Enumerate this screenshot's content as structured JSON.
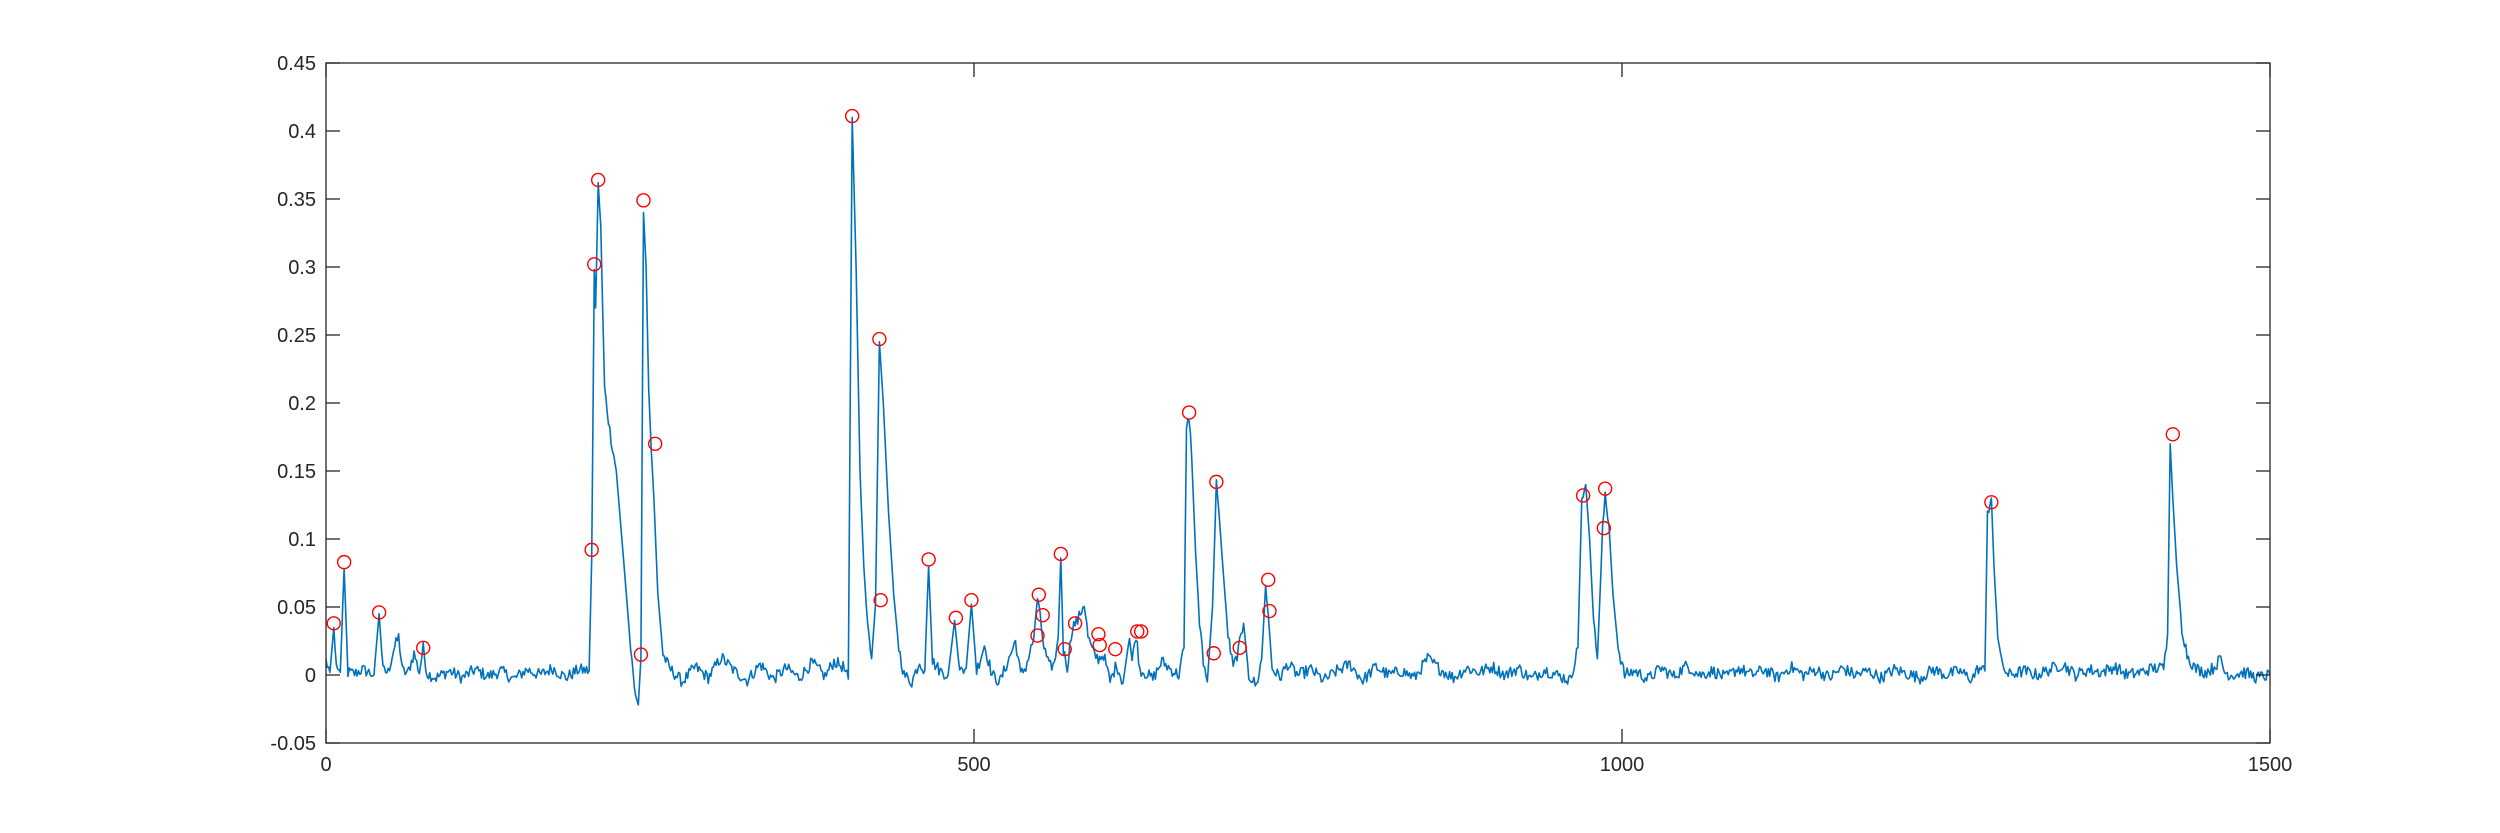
{
  "chart_data": {
    "type": "line",
    "title": "",
    "xlabel": "",
    "ylabel": "",
    "xlim": [
      0,
      1500
    ],
    "ylim": [
      -0.05,
      0.45
    ],
    "x_ticks": [
      0,
      500,
      1000,
      1500
    ],
    "y_ticks": [
      -0.05,
      0,
      0.05,
      0.1,
      0.15,
      0.2,
      0.25,
      0.3,
      0.35,
      0.4,
      0.45
    ],
    "x_tick_labels": [
      "0",
      "500",
      "1000",
      "1500"
    ],
    "y_tick_labels": [
      "-0.05",
      "0",
      "0.05",
      "0.1",
      "0.15",
      "0.2",
      "0.25",
      "0.3",
      "0.35",
      "0.4",
      "0.45"
    ],
    "grid": false,
    "legend": "none",
    "signal_color": "#0072BD",
    "marker_color": "#FF0000",
    "signal_keypoints": [
      [
        0,
        0.01
      ],
      [
        3,
        0.002
      ],
      [
        6,
        0.035
      ],
      [
        8,
        0.003
      ],
      [
        11,
        0.002
      ],
      [
        14,
        0.078
      ],
      [
        17,
        0.002
      ],
      [
        22,
        0.001
      ],
      [
        28,
        0.004
      ],
      [
        33,
        0.002
      ],
      [
        37,
        0.0
      ],
      [
        41,
        0.045
      ],
      [
        44,
        0.003
      ],
      [
        48,
        0.002
      ],
      [
        52,
        0.018
      ],
      [
        56,
        0.028
      ],
      [
        59,
        0.003
      ],
      [
        63,
        0.001
      ],
      [
        68,
        0.016
      ],
      [
        72,
        0.002
      ],
      [
        75,
        0.02
      ],
      [
        78,
        0.001
      ],
      [
        85,
        -0.002
      ],
      [
        95,
        0.003
      ],
      [
        105,
        -0.002
      ],
      [
        115,
        0.004
      ],
      [
        125,
        -0.001
      ],
      [
        135,
        0.003
      ],
      [
        145,
        -0.003
      ],
      [
        155,
        0.004
      ],
      [
        165,
        0.0
      ],
      [
        175,
        0.005
      ],
      [
        185,
        -0.002
      ],
      [
        195,
        0.004
      ],
      [
        203,
        0.003
      ],
      [
        205,
        0.085
      ],
      [
        207,
        0.298
      ],
      [
        208,
        0.27
      ],
      [
        210,
        0.36
      ],
      [
        212,
        0.33
      ],
      [
        215,
        0.21
      ],
      [
        219,
        0.18
      ],
      [
        224,
        0.15
      ],
      [
        230,
        0.08
      ],
      [
        235,
        0.02
      ],
      [
        238,
        -0.01
      ],
      [
        241,
        -0.022
      ],
      [
        243,
        0.012
      ],
      [
        245,
        0.34
      ],
      [
        247,
        0.3
      ],
      [
        249,
        0.21
      ],
      [
        251,
        0.165
      ],
      [
        253,
        0.13
      ],
      [
        256,
        0.06
      ],
      [
        260,
        0.015
      ],
      [
        265,
        0.005
      ],
      [
        275,
        -0.005
      ],
      [
        285,
        0.006
      ],
      [
        295,
        -0.002
      ],
      [
        305,
        0.013
      ],
      [
        315,
        0.003
      ],
      [
        325,
        -0.004
      ],
      [
        335,
        0.008
      ],
      [
        345,
        -0.003
      ],
      [
        355,
        0.005
      ],
      [
        365,
        -0.002
      ],
      [
        375,
        0.009
      ],
      [
        385,
        -0.001
      ],
      [
        392,
        0.01
      ],
      [
        399,
        0.006
      ],
      [
        403,
        -0.003
      ],
      [
        406,
        0.41
      ],
      [
        409,
        0.3
      ],
      [
        412,
        0.15
      ],
      [
        415,
        0.08
      ],
      [
        418,
        0.035
      ],
      [
        421,
        0.012
      ],
      [
        424,
        0.052
      ],
      [
        427,
        0.245
      ],
      [
        430,
        0.2
      ],
      [
        434,
        0.12
      ],
      [
        438,
        0.06
      ],
      [
        442,
        0.02
      ],
      [
        446,
        0.0
      ],
      [
        452,
        -0.005
      ],
      [
        458,
        0.01
      ],
      [
        462,
        0.003
      ],
      [
        465,
        0.08
      ],
      [
        468,
        0.01
      ],
      [
        474,
        0.003
      ],
      [
        480,
        0.0
      ],
      [
        485,
        0.04
      ],
      [
        489,
        0.002
      ],
      [
        494,
        0.005
      ],
      [
        498,
        0.052
      ],
      [
        502,
        0.003
      ],
      [
        508,
        0.022
      ],
      [
        514,
        0.0
      ],
      [
        520,
        -0.005
      ],
      [
        527,
        0.012
      ],
      [
        532,
        0.025
      ],
      [
        536,
        0.0
      ],
      [
        540,
        0.006
      ],
      [
        546,
        0.026
      ],
      [
        549,
        0.057
      ],
      [
        551,
        0.042
      ],
      [
        554,
        0.02
      ],
      [
        558,
        0.006
      ],
      [
        562,
        0.008
      ],
      [
        565,
        0.028
      ],
      [
        567,
        0.086
      ],
      [
        569,
        0.018
      ],
      [
        572,
        0.006
      ],
      [
        576,
        0.036
      ],
      [
        580,
        0.04
      ],
      [
        585,
        0.053
      ],
      [
        588,
        0.028
      ],
      [
        592,
        0.016
      ],
      [
        596,
        0.012
      ],
      [
        600,
        0.015
      ],
      [
        605,
        -0.005
      ],
      [
        610,
        0.008
      ],
      [
        615,
        -0.006
      ],
      [
        620,
        0.028
      ],
      [
        622,
        0.01
      ],
      [
        625,
        0.03
      ],
      [
        628,
        0.004
      ],
      [
        633,
        0.001
      ],
      [
        638,
        -0.003
      ],
      [
        645,
        0.01
      ],
      [
        652,
        0.004
      ],
      [
        658,
        0.0
      ],
      [
        662,
        0.02
      ],
      [
        664,
        0.18
      ],
      [
        666,
        0.19
      ],
      [
        668,
        0.16
      ],
      [
        671,
        0.09
      ],
      [
        674,
        0.04
      ],
      [
        677,
        0.01
      ],
      [
        680,
        -0.005
      ],
      [
        684,
        0.05
      ],
      [
        687,
        0.14
      ],
      [
        689,
        0.12
      ],
      [
        692,
        0.08
      ],
      [
        696,
        0.03
      ],
      [
        700,
        0.005
      ],
      [
        704,
        0.018
      ],
      [
        708,
        0.038
      ],
      [
        712,
        0.0
      ],
      [
        718,
        -0.008
      ],
      [
        722,
        0.012
      ],
      [
        725,
        0.065
      ],
      [
        727,
        0.045
      ],
      [
        730,
        0.005
      ],
      [
        736,
        -0.002
      ],
      [
        742,
        0.008
      ],
      [
        750,
        0.0
      ],
      [
        760,
        0.004
      ],
      [
        770,
        -0.004
      ],
      [
        780,
        0.003
      ],
      [
        790,
        0.008
      ],
      [
        800,
        -0.004
      ],
      [
        810,
        0.006
      ],
      [
        820,
        0.0
      ],
      [
        830,
        0.003
      ],
      [
        840,
        -0.002
      ],
      [
        850,
        0.012
      ],
      [
        860,
        0.004
      ],
      [
        870,
        -0.002
      ],
      [
        880,
        0.005
      ],
      [
        890,
        0.002
      ],
      [
        900,
        0.006
      ],
      [
        910,
        0.0
      ],
      [
        920,
        0.005
      ],
      [
        930,
        -0.003
      ],
      [
        940,
        0.004
      ],
      [
        950,
        0.0
      ],
      [
        960,
        -0.004
      ],
      [
        966,
        0.02
      ],
      [
        969,
        0.13
      ],
      [
        972,
        0.14
      ],
      [
        975,
        0.1
      ],
      [
        978,
        0.04
      ],
      [
        981,
        0.012
      ],
      [
        985,
        0.106
      ],
      [
        987,
        0.134
      ],
      [
        990,
        0.11
      ],
      [
        993,
        0.06
      ],
      [
        997,
        0.02
      ],
      [
        1002,
        0.0
      ],
      [
        1010,
        0.003
      ],
      [
        1020,
        -0.003
      ],
      [
        1030,
        0.005
      ],
      [
        1040,
        -0.001
      ],
      [
        1050,
        0.007
      ],
      [
        1060,
        0.0
      ],
      [
        1070,
        0.003
      ],
      [
        1080,
        -0.002
      ],
      [
        1090,
        0.005
      ],
      [
        1100,
        0.0
      ],
      [
        1110,
        0.004
      ],
      [
        1120,
        -0.002
      ],
      [
        1130,
        0.006
      ],
      [
        1140,
        0.0
      ],
      [
        1150,
        0.004
      ],
      [
        1160,
        -0.002
      ],
      [
        1170,
        0.005
      ],
      [
        1180,
        0.0
      ],
      [
        1190,
        0.003
      ],
      [
        1200,
        -0.002
      ],
      [
        1210,
        0.004
      ],
      [
        1220,
        0.001
      ],
      [
        1230,
        -0.002
      ],
      [
        1240,
        0.004
      ],
      [
        1250,
        0.0
      ],
      [
        1260,
        0.003
      ],
      [
        1270,
        -0.003
      ],
      [
        1275,
        0.005
      ],
      [
        1280,
        0.003
      ],
      [
        1282,
        0.12
      ],
      [
        1285,
        0.13
      ],
      [
        1287,
        0.08
      ],
      [
        1290,
        0.03
      ],
      [
        1293,
        0.008
      ],
      [
        1298,
        0.0
      ],
      [
        1310,
        0.003
      ],
      [
        1320,
        0.0
      ],
      [
        1330,
        0.004
      ],
      [
        1340,
        0.008
      ],
      [
        1350,
        0.0
      ],
      [
        1360,
        0.004
      ],
      [
        1370,
        0.002
      ],
      [
        1380,
        0.006
      ],
      [
        1390,
        0.0
      ],
      [
        1400,
        0.002
      ],
      [
        1410,
        0.005
      ],
      [
        1418,
        0.005
      ],
      [
        1421,
        0.03
      ],
      [
        1423,
        0.17
      ],
      [
        1425,
        0.13
      ],
      [
        1428,
        0.08
      ],
      [
        1432,
        0.035
      ],
      [
        1436,
        0.015
      ],
      [
        1442,
        0.005
      ],
      [
        1450,
        0.002
      ],
      [
        1456,
        0.005
      ],
      [
        1462,
        0.012
      ],
      [
        1465,
        0.002
      ],
      [
        1470,
        0.0
      ],
      [
        1480,
        0.002
      ],
      [
        1490,
        -0.002
      ],
      [
        1500,
        0.0
      ]
    ],
    "peaks": [
      [
        6,
        0.038
      ],
      [
        14,
        0.083
      ],
      [
        41,
        0.046
      ],
      [
        75,
        0.02
      ],
      [
        205,
        0.092
      ],
      [
        207,
        0.302
      ],
      [
        210,
        0.364
      ],
      [
        243,
        0.015
      ],
      [
        245,
        0.349
      ],
      [
        254,
        0.17
      ],
      [
        406,
        0.411
      ],
      [
        427,
        0.247
      ],
      [
        428,
        0.055
      ],
      [
        465,
        0.085
      ],
      [
        486,
        0.042
      ],
      [
        498,
        0.055
      ],
      [
        550,
        0.059
      ],
      [
        553,
        0.044
      ],
      [
        549,
        0.029
      ],
      [
        567,
        0.089
      ],
      [
        570,
        0.019
      ],
      [
        578,
        0.038
      ],
      [
        596,
        0.03
      ],
      [
        597,
        0.022
      ],
      [
        609,
        0.019
      ],
      [
        626,
        0.032
      ],
      [
        629,
        0.032
      ],
      [
        666,
        0.193
      ],
      [
        687,
        0.142
      ],
      [
        685,
        0.016
      ],
      [
        705,
        0.02
      ],
      [
        727,
        0.07
      ],
      [
        728,
        0.047
      ],
      [
        970,
        0.132
      ],
      [
        987,
        0.137
      ],
      [
        986,
        0.108
      ],
      [
        1285,
        0.127
      ],
      [
        1425,
        0.177
      ]
    ]
  }
}
